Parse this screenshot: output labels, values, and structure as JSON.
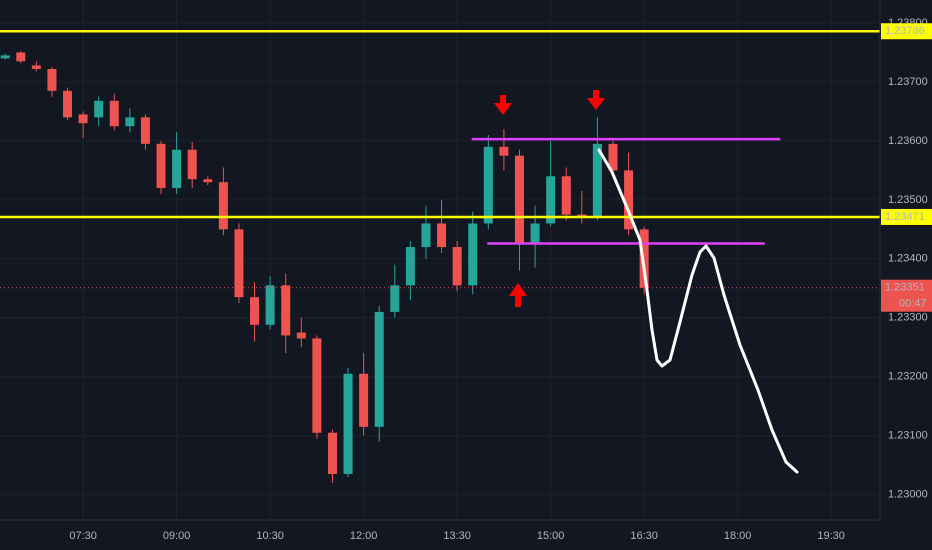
{
  "chart_data": {
    "type": "candlestick",
    "x": [
      375,
      390,
      405,
      420,
      435,
      450,
      465,
      480,
      495,
      510,
      525,
      540,
      555,
      570,
      585,
      600,
      615,
      630,
      645,
      660,
      675,
      690,
      705,
      720,
      735,
      750,
      765,
      780,
      795,
      810,
      825,
      840,
      855,
      870,
      885,
      900,
      915,
      930,
      945,
      960,
      975,
      990
    ],
    "open": [
      1.2374,
      1.2375,
      1.23728,
      1.23722,
      1.23685,
      1.23645,
      1.2364,
      1.23668,
      1.23625,
      1.2364,
      1.23595,
      1.2352,
      1.23585,
      1.23535,
      1.2353,
      1.2345,
      1.23335,
      1.23288,
      1.23355,
      1.23275,
      1.23265,
      1.23105,
      1.23035,
      1.23205,
      1.23115,
      1.2331,
      1.23355,
      1.2342,
      1.2346,
      1.2342,
      1.23355,
      1.2346,
      1.2359,
      1.23575,
      1.23425,
      1.2346,
      1.2354,
      1.23475,
      1.2347,
      1.23595,
      1.2355,
      1.2345
    ],
    "high": [
      1.23748,
      1.23752,
      1.23735,
      1.23725,
      1.2369,
      1.2365,
      1.23675,
      1.2368,
      1.23655,
      1.23645,
      1.236,
      1.23615,
      1.23598,
      1.2354,
      1.23555,
      1.2346,
      1.2336,
      1.2337,
      1.23375,
      1.233,
      1.2327,
      1.2311,
      1.23215,
      1.2324,
      1.2332,
      1.2339,
      1.2343,
      1.2349,
      1.235,
      1.2343,
      1.2348,
      1.2361,
      1.2362,
      1.23585,
      1.2349,
      1.236,
      1.23555,
      1.23515,
      1.2364,
      1.236,
      1.2358,
      1.23455
    ],
    "low": [
      1.23738,
      1.23732,
      1.23718,
      1.23675,
      1.23635,
      1.23605,
      1.23625,
      1.23618,
      1.23615,
      1.23585,
      1.2351,
      1.2351,
      1.2352,
      1.23525,
      1.2344,
      1.23325,
      1.2326,
      1.2328,
      1.2324,
      1.2325,
      1.23095,
      1.2302,
      1.2303,
      1.231,
      1.2309,
      1.233,
      1.2333,
      1.234,
      1.2341,
      1.23345,
      1.2334,
      1.2345,
      1.2355,
      1.2338,
      1.23385,
      1.23455,
      1.23465,
      1.2346,
      1.23465,
      1.23545,
      1.2344,
      1.2334
    ],
    "close": [
      1.23745,
      1.23735,
      1.23722,
      1.23685,
      1.2364,
      1.2363,
      1.23668,
      1.23625,
      1.2364,
      1.23595,
      1.2352,
      1.23585,
      1.23535,
      1.2353,
      1.2345,
      1.23335,
      1.23288,
      1.23355,
      1.2327,
      1.23265,
      1.23105,
      1.23035,
      1.23205,
      1.23115,
      1.2331,
      1.23355,
      1.2342,
      1.2346,
      1.2342,
      1.23355,
      1.2346,
      1.2359,
      1.23575,
      1.23425,
      1.2346,
      1.2354,
      1.23475,
      1.2347,
      1.23595,
      1.2355,
      1.2345,
      1.23351
    ],
    "up_color": "#26a69a",
    "down_color": "#ef5350",
    "xlim": [
      370,
      1217
    ],
    "xticks": [
      {
        "value": 450,
        "label": "07:30"
      },
      {
        "value": 540,
        "label": "09:00"
      },
      {
        "value": 630,
        "label": "10:30"
      },
      {
        "value": 720,
        "label": "12:00"
      },
      {
        "value": 810,
        "label": "13:30"
      },
      {
        "value": 900,
        "label": "15:00"
      },
      {
        "value": 990,
        "label": "16:30"
      },
      {
        "value": 1080,
        "label": "18:00"
      },
      {
        "value": 1170,
        "label": "19:30"
      }
    ],
    "ylim": [
      1.22957,
      1.23839
    ],
    "yticks": [
      {
        "value": 1.23,
        "label": "1.23000"
      },
      {
        "value": 1.231,
        "label": "1.23100"
      },
      {
        "value": 1.232,
        "label": "1.23200"
      },
      {
        "value": 1.233,
        "label": "1.23300"
      },
      {
        "value": 1.234,
        "label": "1.23400"
      },
      {
        "value": 1.235,
        "label": "1.23500"
      },
      {
        "value": 1.236,
        "label": "1.23600"
      },
      {
        "value": 1.237,
        "label": "1.23700"
      },
      {
        "value": 1.238,
        "label": "1.23800"
      }
    ],
    "grid": true,
    "levels": [
      {
        "value": 1.23786,
        "color": "#ffff00"
      },
      {
        "value": 1.23471,
        "color": "#ffff00"
      }
    ],
    "segments": [
      {
        "value": 1.23603,
        "x": [
          824,
          1121
        ],
        "color": "#e040fb"
      },
      {
        "value": 1.23426,
        "x": [
          839,
          1106
        ],
        "color": "#e040fb"
      }
    ],
    "current_price": 1.23351,
    "current_color": "#ef5350",
    "countdown": "00:47"
  }
}
